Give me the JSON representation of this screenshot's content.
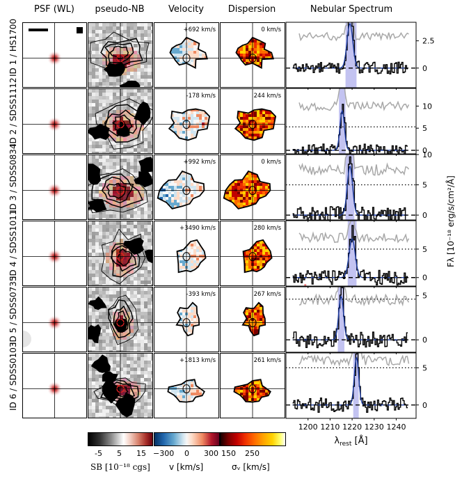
{
  "columns": {
    "psf": "PSF (WL)",
    "nb": "pseudo-NB",
    "velocity": "Velocity",
    "dispersion": "Dispersion",
    "spectrum": "Nebular Spectrum"
  },
  "rows": [
    {
      "label": "ID 1 / HS1700",
      "velocity": "+692 km/s",
      "dispersion": "0 km/s"
    },
    {
      "label": "ID 2 / SDSS1112",
      "velocity": "-178 km/s",
      "dispersion": "244 km/s"
    },
    {
      "label": "ID 3 / SDSS0834",
      "velocity": "+992 km/s",
      "dispersion": "0 km/s"
    },
    {
      "label": "ID 4 / SDSS1011",
      "velocity": "+3490 km/s",
      "dispersion": "280 km/s"
    },
    {
      "label": "ID 5 / SDSS0735",
      "velocity": "-393 km/s",
      "dispersion": "267 km/s"
    },
    {
      "label": "ID 6 / SDSS0103",
      "velocity": "+1813 km/s",
      "dispersion": "261 km/s"
    }
  ],
  "colorbars": {
    "sb": {
      "label": "SB [10⁻¹⁸ cgs]",
      "ticks": [
        "-5",
        "5",
        "15"
      ]
    },
    "v": {
      "label": "v [km/s]",
      "ticks": [
        "−300",
        "0",
        "300"
      ]
    },
    "sigma": {
      "label": "σᵥ [km/s]",
      "ticks": [
        "150",
        "250"
      ]
    }
  },
  "chart_data": {
    "type": "line",
    "title": "Nebular Spectrum",
    "xlabel": "λ_rest [Å]",
    "xlabel_main": "λ",
    "xlabel_sub": "rest",
    "xlabel_unit": " [Å]",
    "ylabel": "Fλ [10⁻¹⁸ erg/s/cm²/Å]",
    "xlim": [
      1190,
      1249
    ],
    "xticks": [
      1200,
      1210,
      1220,
      1230,
      1240
    ],
    "xtick_labels": [
      "1200",
      "1210",
      "1220",
      "1230",
      "1240"
    ],
    "panels": [
      {
        "ylim": [
          -1.8,
          4.2
        ],
        "yticks": [
          0,
          2.5
        ],
        "ytick_labels": [
          "0",
          "2.5"
        ],
        "dotted": null,
        "band": [
          1217,
          1222
        ],
        "line_center": 1219,
        "peak": 4.8,
        "sigma_A": 1.3,
        "noise": 0.55,
        "gray_level": 2.9,
        "red_band": null
      },
      {
        "ylim": [
          -0.8,
          14
        ],
        "yticks": [
          0,
          5,
          10
        ],
        "ytick_labels": [
          "0",
          "5",
          "10"
        ],
        "dotted": 5.3,
        "band": [
          1214,
          1217
        ],
        "line_center": 1215.5,
        "peak": 10.5,
        "sigma_A": 1.0,
        "noise": 1.5,
        "gray_level": 10,
        "red_band": null
      },
      {
        "ylim": [
          -0.8,
          10
        ],
        "yticks": [
          0,
          5,
          10
        ],
        "ytick_labels": [
          "0",
          "5",
          "10"
        ],
        "dotted": 5.0,
        "band": [
          1217,
          1221
        ],
        "line_center": 1219,
        "peak": 9.5,
        "sigma_A": 1.2,
        "noise": 1.4,
        "gray_level": 7.5,
        "red_band": null
      },
      {
        "ylim": [
          -1.5,
          10
        ],
        "yticks": [
          0,
          5
        ],
        "ytick_labels": [
          "0",
          "5"
        ],
        "dotted": 5.0,
        "band": [
          1218,
          1222
        ],
        "line_center": 1220,
        "peak": 8.0,
        "sigma_A": 1.4,
        "noise": 1.3,
        "gray_level": 7,
        "red_band": [
          1198.3,
          1199.2
        ]
      },
      {
        "ylim": [
          -1.4,
          6
        ],
        "yticks": [
          0,
          5
        ],
        "ytick_labels": [
          "0",
          "5"
        ],
        "dotted": 4.6,
        "band": [
          1213.5,
          1216.5
        ],
        "line_center": 1215,
        "peak": 5.8,
        "sigma_A": 1.1,
        "noise": 0.9,
        "gray_level": 4.5,
        "red_band": null
      },
      {
        "ylim": [
          -1.8,
          7
        ],
        "yticks": [
          0,
          5
        ],
        "ytick_labels": [
          "0",
          "5"
        ],
        "dotted": 5.0,
        "band": [
          1220.5,
          1223
        ],
        "line_center": 1222,
        "peak": 7.5,
        "sigma_A": 1.0,
        "noise": 1.0,
        "gray_level": 6,
        "red_band": null
      }
    ]
  }
}
